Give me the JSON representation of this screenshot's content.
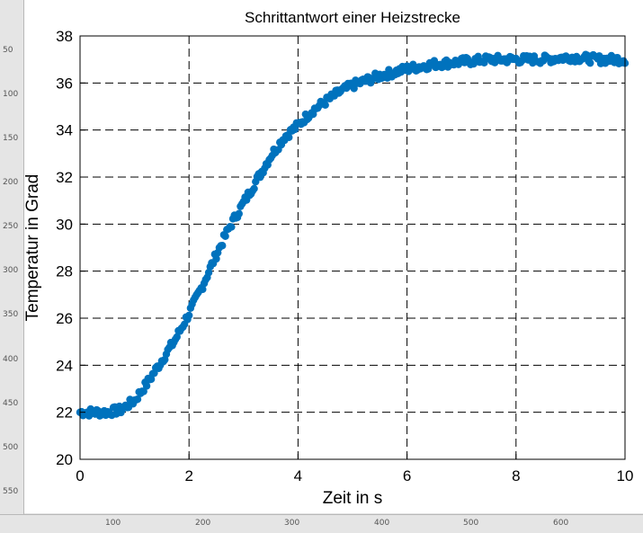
{
  "viewer": {
    "ruler_left_ticks": [
      "50",
      "100",
      "150",
      "200",
      "250",
      "300",
      "350",
      "400",
      "450",
      "500",
      "550"
    ],
    "ruler_bottom_ticks": [
      "100",
      "200",
      "300",
      "400",
      "500",
      "600"
    ]
  },
  "chart_data": {
    "type": "scatter",
    "title": "Schrittantwort einer Heizstrecke",
    "xlabel": "Zeit in s",
    "ylabel": "Temperatur in Grad",
    "xlim": [
      0,
      10
    ],
    "ylim": [
      20,
      38
    ],
    "xticks": [
      0,
      2,
      4,
      6,
      8,
      10
    ],
    "yticks": [
      20,
      22,
      24,
      26,
      28,
      30,
      32,
      34,
      36,
      38
    ],
    "grid": "dashed",
    "color": "#0072bd",
    "series": [
      {
        "x": [
          0,
          0.25,
          0.5,
          0.75,
          1.0,
          1.25,
          1.5,
          1.75,
          2.0,
          2.25,
          2.5,
          2.75,
          3.0,
          3.25,
          3.5,
          3.75,
          4.0,
          4.25,
          4.5,
          4.75,
          5.0,
          5.5,
          6.0,
          6.5,
          7.0,
          7.5,
          8.0,
          8.5,
          9.0,
          9.5,
          10.0
        ],
        "y": [
          22.0,
          22.0,
          22.0,
          22.1,
          22.5,
          23.3,
          24.2,
          25.1,
          26.2,
          27.4,
          28.7,
          29.9,
          30.9,
          31.9,
          32.9,
          33.7,
          34.2,
          34.8,
          35.2,
          35.6,
          35.9,
          36.3,
          36.6,
          36.8,
          36.9,
          37.0,
          37.0,
          37.0,
          37.1,
          37.0,
          37.0
        ]
      }
    ]
  }
}
